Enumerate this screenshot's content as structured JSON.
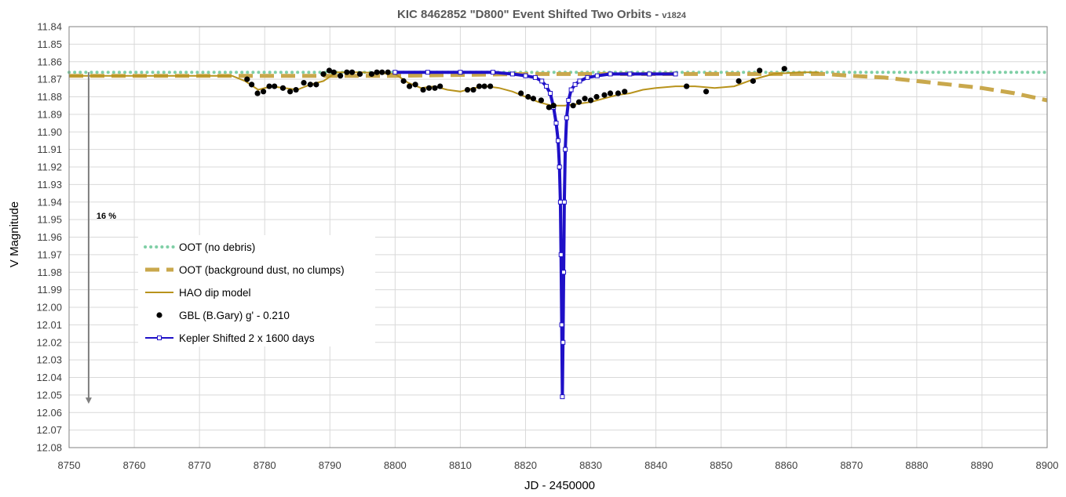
{
  "chart_data": {
    "type": "scatter",
    "title": "KIC 8462852 \"D800\" Event Shifted Two Orbits - ",
    "title_version": "v1824",
    "xlabel": "JD - 2450000",
    "ylabel": "V Magnitude",
    "xlim": [
      8750,
      8900
    ],
    "ylim": [
      11.84,
      12.08
    ],
    "y_inverted": true,
    "x_tick_step": 10,
    "y_tick_step": 0.01,
    "grid": true,
    "legend_position": "left-middle",
    "annotation": {
      "text": "16 %",
      "arrow_x": 8753,
      "arrow_from": 11.866,
      "arrow_to": 12.055
    },
    "series": [
      {
        "name": "OOT (no debris)",
        "style": "dotted",
        "color": "#7fcfa6",
        "x": [
          8750,
          8900
        ],
        "y": [
          11.866,
          11.866
        ]
      },
      {
        "name": "OOT (background dust, no clumps)",
        "style": "dashed",
        "color": "#c9a84c",
        "x": [
          8750,
          8760,
          8780,
          8800,
          8820,
          8840,
          8860,
          8866,
          8870,
          8875,
          8880,
          8885,
          8890,
          8895,
          8900
        ],
        "y": [
          11.868,
          11.868,
          11.868,
          11.868,
          11.867,
          11.867,
          11.867,
          11.867,
          11.868,
          11.869,
          11.871,
          11.873,
          11.875,
          11.878,
          11.882
        ]
      },
      {
        "name": "HAO dip model",
        "style": "solid",
        "color": "#b8931c",
        "x": [
          8750,
          8775,
          8777,
          8779,
          8781,
          8783,
          8785,
          8787,
          8789,
          8791,
          8795,
          8800,
          8802,
          8804,
          8806,
          8808,
          8810,
          8812,
          8814,
          8816,
          8818,
          8820,
          8822,
          8824,
          8826,
          8828,
          8830,
          8832,
          8834,
          8836,
          8838,
          8840,
          8843,
          8846,
          8849,
          8852,
          8855,
          8858,
          8862,
          8865
        ],
        "y": [
          11.868,
          11.868,
          11.871,
          11.876,
          11.874,
          11.875,
          11.876,
          11.873,
          11.871,
          11.866,
          11.866,
          11.867,
          11.872,
          11.875,
          11.874,
          11.876,
          11.877,
          11.875,
          11.874,
          11.875,
          11.877,
          11.88,
          11.883,
          11.885,
          11.885,
          11.884,
          11.883,
          11.881,
          11.879,
          11.878,
          11.876,
          11.875,
          11.874,
          11.874,
          11.875,
          11.874,
          11.87,
          11.867,
          11.866,
          11.866
        ]
      },
      {
        "name": "GBL (B.Gary) g' - 0.210",
        "style": "markers",
        "color": "#000000",
        "x": [
          8777.3,
          8778.0,
          8778.9,
          8779.8,
          8780.7,
          8781.5,
          8782.8,
          8783.9,
          8784.8,
          8786.0,
          8787.0,
          8787.9,
          8789.0,
          8789.9,
          8790.6,
          8791.6,
          8792.6,
          8793.4,
          8794.6,
          8796.4,
          8797.2,
          8798.0,
          8798.9,
          8801.3,
          8802.2,
          8803.1,
          8804.3,
          8805.2,
          8806.1,
          8806.9,
          8811.1,
          8812.0,
          8812.9,
          8813.7,
          8814.6,
          8819.3,
          8820.4,
          8821.2,
          8822.4,
          8823.6,
          8824.3,
          8827.3,
          8828.2,
          8829.1,
          8830.0,
          8830.9,
          8832.1,
          8833.0,
          8834.2,
          8835.2,
          8844.7,
          8847.7,
          8852.7,
          8854.9,
          8855.9,
          8859.7
        ],
        "y": [
          11.87,
          11.873,
          11.878,
          11.877,
          11.874,
          11.874,
          11.875,
          11.877,
          11.876,
          11.872,
          11.873,
          11.873,
          11.867,
          11.865,
          11.866,
          11.868,
          11.866,
          11.866,
          11.867,
          11.867,
          11.866,
          11.866,
          11.866,
          11.871,
          11.874,
          11.873,
          11.876,
          11.875,
          11.875,
          11.874,
          11.876,
          11.876,
          11.874,
          11.874,
          11.874,
          11.878,
          11.88,
          11.881,
          11.882,
          11.886,
          11.885,
          11.885,
          11.883,
          11.881,
          11.882,
          11.88,
          11.879,
          11.878,
          11.878,
          11.877,
          11.874,
          11.877,
          11.871,
          11.871,
          11.865,
          11.864
        ]
      },
      {
        "name": "Kepler Shifted 2 x 1600 days",
        "style": "line-markers",
        "color": "#1f10c8",
        "x": [
          8800,
          8805,
          8810,
          8815,
          8818,
          8820,
          8821.5,
          8822.5,
          8823.2,
          8823.8,
          8824.3,
          8824.7,
          8825.0,
          8825.2,
          8825.35,
          8825.45,
          8825.55,
          8825.65,
          8825.75,
          8825.85,
          8825.95,
          8826.1,
          8826.3,
          8826.6,
          8827.0,
          8827.6,
          8828.3,
          8829.5,
          8831,
          8833,
          8836,
          8839,
          8843
        ],
        "y": [
          11.866,
          11.866,
          11.866,
          11.866,
          11.867,
          11.868,
          11.869,
          11.871,
          11.874,
          11.878,
          11.886,
          11.895,
          11.905,
          11.92,
          11.94,
          11.97,
          12.01,
          12.051,
          12.02,
          11.98,
          11.94,
          11.91,
          11.892,
          11.882,
          11.876,
          11.873,
          11.871,
          11.869,
          11.868,
          11.867,
          11.867,
          11.867,
          11.867
        ]
      }
    ]
  }
}
